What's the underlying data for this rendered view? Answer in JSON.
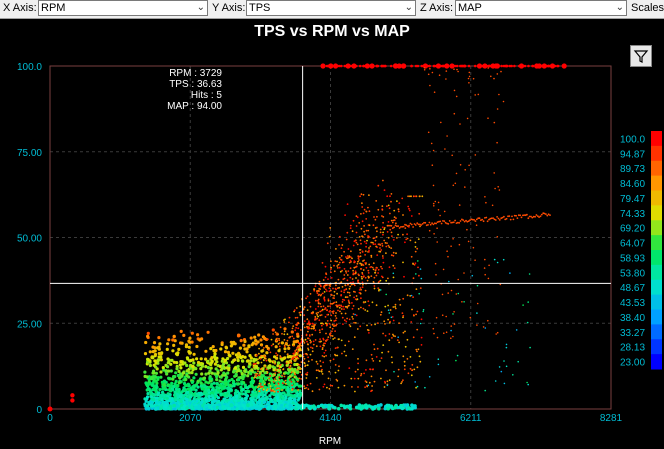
{
  "toolbar": {
    "x_label": "X Axis:",
    "x_value": "RPM",
    "y_label": "Y Axis:",
    "y_value": "TPS",
    "z_label": "Z Axis:",
    "z_value": "MAP",
    "scales_label": "Scales"
  },
  "chart_data": {
    "type": "scatter",
    "title": "TPS vs RPM vs MAP",
    "xlabel": "RPM",
    "ylabel": "",
    "xlim": [
      0,
      8281
    ],
    "ylim": [
      0,
      100
    ],
    "x_ticks": [
      "0",
      "2070",
      "4140",
      "6211",
      "8281"
    ],
    "y_ticks": [
      "0",
      "25.00",
      "50.00",
      "75.00",
      "100.0"
    ],
    "color_scale": [
      "100.0",
      "94.87",
      "89.73",
      "84.60",
      "79.47",
      "74.33",
      "69.20",
      "64.07",
      "58.93",
      "53.80",
      "48.67",
      "43.53",
      "38.40",
      "33.27",
      "28.13",
      "23.00"
    ],
    "cursor": {
      "rpm_label": "RPM : 3729",
      "tps_label": "TPS : 36.63",
      "hits_label": "Hits : 5",
      "map_label": "MAP : 94.00",
      "rpm": 3729,
      "tps": 36.63
    }
  },
  "colors": {
    "axis": "#00bcd4",
    "grid": "#3a3a3a",
    "border": "#c08080"
  }
}
